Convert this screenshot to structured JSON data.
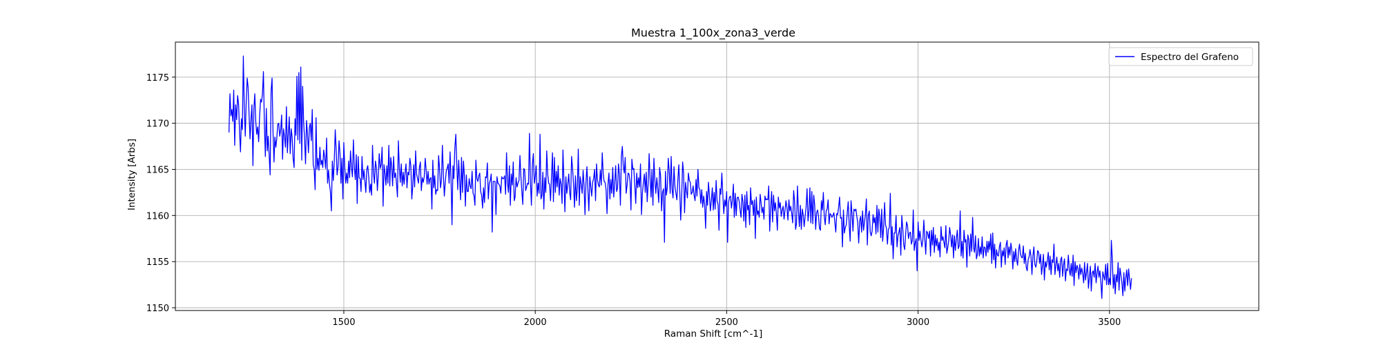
{
  "chart_data": {
    "type": "line",
    "title": "Muestra 1_100x_zona3_verde",
    "xlabel": "Raman Shift [cm^-1]",
    "ylabel": "Intensity [Arbs]",
    "xlim": [
      1060,
      3890
    ],
    "ylim": [
      1149.7,
      1178.8
    ],
    "xticks": [
      1500,
      2000,
      2500,
      3000,
      3500
    ],
    "yticks": [
      1150,
      1155,
      1160,
      1165,
      1170,
      1175
    ],
    "grid": true,
    "legend_position": "top-right",
    "series": [
      {
        "name": "Espectro del Grafeno",
        "color": "#0000ff",
        "x_start": 1200,
        "x_step": 2.5,
        "values": [
          1169.0,
          1173.2,
          1170.8,
          1171.5,
          1170.2,
          1173.6,
          1167.6,
          1172.0,
          1170.4,
          1173.0,
          1172.1,
          1169.1,
          1166.9,
          1170.5,
          1169.3,
          1177.3,
          1171.7,
          1168.6,
          1172.4,
          1174.9,
          1173.9,
          1171.0,
          1168.3,
          1170.4,
          1172.0,
          1165.4,
          1171.6,
          1173.2,
          1170.2,
          1168.8,
          1169.6,
          1168.0,
          1170.8,
          1172.6,
          1172.3,
          1173.2,
          1175.6,
          1169.8,
          1166.4,
          1171.6,
          1167.0,
          1168.6,
          1166.6,
          1164.4,
          1173.5,
          1174.9,
          1169.0,
          1165.8,
          1168.5,
          1167.4,
          1168.4,
          1169.9,
          1170.0,
          1168.6,
          1169.3,
          1170.9,
          1166.1,
          1169.4,
          1168.6,
          1167.4,
          1171.8,
          1166.8,
          1168.9,
          1170.7,
          1166.7,
          1169.4,
          1168.5,
          1166.2,
          1165.2,
          1170.5,
          1168.7,
          1175.1,
          1168.2,
          1175.5,
          1167.8,
          1176.1,
          1166.0,
          1174.0,
          1170.2,
          1168.3,
          1165.6,
          1170.3,
          1168.8,
          1166.8,
          1169.5,
          1170.0,
          1168.1,
          1171.5,
          1165.5,
          1165.0,
          1162.8,
          1170.6,
          1165.0,
          1166.2,
          1164.9,
          1167.4,
          1165.5,
          1166.0,
          1165.2,
          1167.1,
          1166.3,
          1165.1,
          1168.4,
          1163.5,
          1164.9,
          1163.4,
          1162.6,
          1160.5,
          1165.9,
          1163.8,
          1165.9,
          1169.3,
          1167.0,
          1164.4,
          1165.3,
          1168.1,
          1166.7,
          1163.5,
          1166.2,
          1161.8,
          1167.9,
          1165.2,
          1163.5,
          1164.6,
          1163.5,
          1165.9,
          1164.1,
          1167.0,
          1165.2,
          1164.2,
          1168.2,
          1165.2,
          1163.9,
          1166.6,
          1161.3,
          1166.4,
          1164.1,
          1164.0,
          1162.6,
          1166.4,
          1163.9,
          1164.9,
          1163.8,
          1162.5,
          1165.0,
          1165.4,
          1164.2,
          1162.5,
          1163.4,
          1162.2,
          1167.6,
          1164.6,
          1163.5,
          1165.9,
          1165.2,
          1162.7,
          1164.3,
          1166.7,
          1165.1,
          1165.5,
          1167.4,
          1161.0,
          1165.5,
          1164.6,
          1163.3,
          1165.4,
          1163.5,
          1167.6,
          1163.2,
          1166.3,
          1165.4,
          1163.2,
          1166.4,
          1164.1,
          1164.6,
          1163.5,
          1162.0,
          1168.1,
          1165.3,
          1163.6,
          1165.6,
          1163.2,
          1164.7,
          1163.4,
          1164.7,
          1165.6,
          1163.0,
          1164.7,
          1164.4,
          1166.2,
          1165.4,
          1161.8,
          1163.1,
          1165.5,
          1163.1,
          1167.0,
          1164.5,
          1164.0,
          1163.5,
          1165.2,
          1165.8,
          1162.7,
          1164.1,
          1163.6,
          1164.2,
          1166.2,
          1165.0,
          1163.4,
          1164.8,
          1163.4,
          1164.0,
          1164.1,
          1160.7,
          1166.0,
          1163.0,
          1164.3,
          1162.3,
          1162.8,
          1162.7,
          1166.5,
          1165.2,
          1163.0,
          1163.8,
          1167.6,
          1164.4,
          1162.1,
          1163.7,
          1164.8,
          1165.1,
          1165.6,
          1163.5,
          1166.9,
          1164.0,
          1159.0,
          1165.4,
          1164.0,
          1167.3,
          1168.8,
          1165.6,
          1162.8,
          1166.0,
          1163.8,
          1161.7,
          1166.3,
          1162.5,
          1165.9,
          1164.3,
          1161.0,
          1164.4,
          1162.6,
          1162.6,
          1164.0,
          1163.2,
          1162.9,
          1164.8,
          1162.4,
          1162.2,
          1161.1,
          1166.0,
          1164.0,
          1163.7,
          1164.3,
          1164.6,
          1162.6,
          1162.2,
          1160.8,
          1163.0,
          1161.4,
          1164.2,
          1164.1,
          1165.7,
          1161.8,
          1163.5,
          1163.8,
          1164.5,
          1158.2,
          1163.7,
          1163.7,
          1163.7,
          1160.1,
          1164.2,
          1163.5,
          1163.4,
          1163.2,
          1162.4,
          1164.2,
          1164.0,
          1164.0,
          1164.3,
          1162.3,
          1166.8,
          1163.6,
          1162.5,
          1165.4,
          1161.1,
          1164.5,
          1163.3,
          1165.8,
          1161.6,
          1162.0,
          1164.1,
          1163.1,
          1163.5,
          1163.8,
          1166.5,
          1164.2,
          1162.7,
          1161.2,
          1165.1,
          1164.9,
          1162.7,
          1163.1,
          1163.5,
          1163.4,
          1168.9,
          1163.6,
          1161.1,
          1165.5,
          1166.7,
          1163.5,
          1164.2,
          1165.4,
          1162.1,
          1163.5,
          1162.4,
          1168.8,
          1161.8,
          1162.2,
          1164.7,
          1160.7,
          1164.1,
          1162.5,
          1167.0,
          1164.5,
          1163.5,
          1163.4,
          1161.6,
          1164.2,
          1166.8,
          1161.5,
          1166.3,
          1162.5,
          1164.8,
          1163.1,
          1165.4,
          1162.2,
          1164.0,
          1163.4,
          1161.3,
          1167.1,
          1163.8,
          1160.4,
          1164.2,
          1162.4,
          1163.4,
          1164.5,
          1162.5,
          1161.7,
          1166.4,
          1165.1,
          1163.4,
          1160.9,
          1164.3,
          1161.6,
          1162.9,
          1167.2,
          1161.1,
          1164.2,
          1163.4,
          1162.4,
          1164.9,
          1163.3,
          1160.1,
          1163.6,
          1165.3,
          1162.8,
          1160.5,
          1164.2,
          1163.2,
          1162.1,
          1163.6,
          1164.0,
          1165.0,
          1161.6,
          1165.6,
          1163.9,
          1163.3,
          1163.1,
          1164.9,
          1163.3,
          1166.8,
          1164.5,
          1163.7,
          1163.6,
          1162.8,
          1160.2,
          1163.4,
          1164.6,
          1161.8,
          1163.9,
          1162.4,
          1165.2,
          1162.0,
          1163.4,
          1165.4,
          1162.6,
          1163.0,
          1165.6,
          1164.4,
          1161.1,
          1166.4,
          1167.5,
          1165.3,
          1164.6,
          1166.3,
          1162.4,
          1163.3,
          1164.6,
          1164.5,
          1163.7,
          1160.6,
          1166.1,
          1165.0,
          1165.1,
          1163.3,
          1161.3,
          1164.6,
          1163.0,
          1164.1,
          1163.1,
          1165.6,
          1160.1,
          1162.5,
          1163.6,
          1164.5,
          1162.5,
          1164.7,
          1161.5,
          1163.5,
          1166.7,
          1164.0,
          1162.0,
          1165.0,
          1161.1,
          1166.2,
          1163.8,
          1162.4,
          1164.1,
          1162.9,
          1161.4,
          1165.2,
          1164.3,
          1160.5,
          1162.5,
          1162.9,
          1157.1,
          1164.8,
          1162.2,
          1163.0,
          1166.2,
          1164.8,
          1162.4,
          1166.4,
          1162.8,
          1161.9,
          1165.3,
          1163.1,
          1162.4,
          1161.7,
          1163.9,
          1165.5,
          1162.7,
          1159.5,
          1162.0,
          1165.8,
          1164.6,
          1160.3,
          1163.6,
          1162.7,
          1161.9,
          1164.6,
          1163.8,
          1163.6,
          1162.3,
          1162.5,
          1163.2,
          1162.2,
          1161.6,
          1163.9,
          1162.1,
          1165.0,
          1163.0,
          1162.8,
          1161.3,
          1162.8,
          1160.9,
          1162.1,
          1161.2,
          1158.6,
          1162.6,
          1161.1,
          1163.6,
          1162.2,
          1160.5,
          1161.6,
          1163.0,
          1160.6,
          1162.5,
          1160.7,
          1163.8,
          1161.6,
          1161.2,
          1158.4,
          1162.9,
          1162.3,
          1164.6,
          1162.3,
          1160.2,
          1161.7,
          1161.0,
          1162.6,
          1157.1,
          1161.4,
          1162.0,
          1162.1,
          1160.8,
          1161.7,
          1163.4,
          1159.8,
          1162.4,
          1160.0,
          1161.9,
          1162.0,
          1161.6,
          1160.6,
          1159.8,
          1162.3,
          1161.5,
          1159.4,
          1162.2,
          1158.7,
          1162.6,
          1160.6,
          1161.1,
          1159.0,
          1163.0,
          1161.2,
          1161.6,
          1160.0,
          1161.7,
          1157.5,
          1162.0,
          1160.1,
          1160.5,
          1159.8,
          1162.3,
          1161.3,
          1160.3,
          1160.9,
          1159.6,
          1162.1,
          1161.7,
          1161.8,
          1161.7,
          1163.2,
          1158.3,
          1160.8,
          1162.6,
          1159.3,
          1162.2,
          1160.5,
          1161.4,
          1160.2,
          1158.4,
          1162.0,
          1160.8,
          1161.4,
          1159.9,
          1160.6,
          1161.0,
          1159.6,
          1160.6,
          1161.6,
          1160.8,
          1159.5,
          1161.7,
          1160.5,
          1161.0,
          1160.2,
          1159.2,
          1162.7,
          1161.5,
          1158.5,
          1159.1,
          1163.2,
          1160.5,
          1158.8,
          1161.1,
          1158.5,
          1160.7,
          1160.1,
          1158.8,
          1159.9,
          1160.9,
          1162.9,
          1159.4,
          1160.5,
          1163.0,
          1159.2,
          1162.6,
          1159.1,
          1162.2,
          1161.1,
          1158.5,
          1160.3,
          1160.6,
          1159.9,
          1158.6,
          1158.4,
          1161.6,
          1160.6,
          1162.5,
          1159.9,
          1159.0,
          1160.5,
          1160.7,
          1161.7,
          1159.1,
          1160.2,
          1160.1,
          1159.8,
          1160.0,
          1160.3,
          1159.3,
          1158.2,
          1160.2,
          1160.1,
          1160.9,
          1162.0,
          1159.7,
          1159.8,
          1156.6,
          1160.6,
          1158.1,
          1158.7,
          1159.0,
          1160.3,
          1161.5,
          1159.0,
          1157.2,
          1161.6,
          1160.2,
          1158.3,
          1160.7,
          1160.5,
          1160.7,
          1159.9,
          1159.2,
          1157.0,
          1159.4,
          1159.9,
          1158.2,
          1160.5,
          1158.4,
          1159.3,
          1160.1,
          1161.8,
          1156.8,
          1160.0,
          1160.5,
          1158.2,
          1157.8,
          1158.3,
          1160.1,
          1159.2,
          1159.8,
          1158.0,
          1161.1,
          1158.2,
          1160.7,
          1159.9,
          1157.6,
          1160.7,
          1157.2,
          1158.7,
          1161.4,
          1159.0,
          1158.6,
          1156.9,
          1158.5,
          1158.7,
          1162.4,
          1156.8,
          1158.8,
          1155.3,
          1158.1,
          1158.1,
          1160.0,
          1156.6,
          1157.8,
          1158.2,
          1158.7,
          1155.7,
          1160.0,
          1158.6,
          1156.8,
          1156.3,
          1158.0,
          1159.3,
          1158.9,
          1157.5,
          1158.1,
          1158.2,
          1156.9,
          1157.3,
          1160.6,
          1156.2,
          1157.0,
          1157.5,
          1154.0,
          1159.3,
          1157.3,
          1158.3,
          1157.4,
          1156.6,
          1157.3,
          1159.5,
          1157.5,
          1155.8,
          1158.3,
          1158.1,
          1157.5,
          1158.3,
          1155.6,
          1158.4,
          1156.8,
          1158.7,
          1156.0,
          1157.9,
          1156.7,
          1157.5,
          1156.2,
          1157.1,
          1155.5,
          1158.8,
          1157.3,
          1157.7,
          1157.1,
          1156.5,
          1158.9,
          1155.9,
          1156.5,
          1157.2,
          1158.7,
          1157.9,
          1156.6,
          1157.9,
          1155.4,
          1157.8,
          1156.2,
          1157.5,
          1158.4,
          1156.4,
          1156.7,
          1160.5,
          1155.6,
          1157.2,
          1155.4,
          1158.4,
          1157.1,
          1157.4,
          1154.4,
          1157.9,
          1157.4,
          1155.6,
          1158.0,
          1156.1,
          1159.8,
          1156.5,
          1156.0,
          1157.8,
          1155.3,
          1155.8,
          1157.5,
          1155.6,
          1156.6,
          1155.8,
          1157.7,
          1155.4,
          1156.6,
          1156.5,
          1155.6,
          1157.2,
          1156.0,
          1157.2,
          1156.3,
          1158.0,
          1154.8,
          1158.1,
          1155.2,
          1156.9,
          1154.3,
          1156.3,
          1155.7,
          1155.6,
          1156.6,
          1157.1,
          1154.4,
          1156.2,
          1155.6,
          1156.5,
          1154.7,
          1156.8,
          1157.3,
          1155.4,
          1156.6,
          1155.7,
          1157.0,
          1156.2,
          1154.2,
          1156.1,
          1155.0,
          1156.4,
          1155.2,
          1154.6,
          1156.2,
          1156.9,
          1155.8,
          1155.5,
          1155.4,
          1156.7,
          1154.8,
          1155.9,
          1154.4,
          1154.0,
          1155.2,
          1155.5,
          1156.3,
          1155.6,
          1153.6,
          1155.6,
          1156.6,
          1154.7,
          1154.4,
          1155.0,
          1156.2,
          1156.0,
          1154.8,
          1155.8,
          1153.6,
          1154.6,
          1155.8,
          1153.0,
          1155.0,
          1154.4,
          1155.1,
          1156.0,
          1154.1,
          1155.6,
          1153.6,
          1155.2,
          1154.9,
          1156.9,
          1153.6,
          1154.7,
          1155.5,
          1154.0,
          1154.8,
          1153.3,
          1155.2,
          1155.5,
          1153.4,
          1154.6,
          1155.3,
          1152.9,
          1154.2,
          1154.0,
          1155.7,
          1154.1,
          1153.5,
          1154.8,
          1153.4,
          1155.7,
          1152.4,
          1155.0,
          1153.8,
          1154.6,
          1154.3,
          1153.1,
          1154.7,
          1153.6,
          1154.3,
          1153.7,
          1152.7,
          1154.9,
          1153.0,
          1153.8,
          1154.8,
          1152.1,
          1153.3,
          1154.5,
          1151.8,
          1153.8,
          1154.0,
          1153.3,
          1154.8,
          1152.7,
          1153.8,
          1154.5,
          1153.3,
          1154.0,
          1152.8,
          1151.0,
          1153.9,
          1153.4,
          1153.0,
          1154.7,
          1152.5,
          1154.8,
          1152.5,
          1153.2,
          1152.5,
          1157.3,
          1155.2,
          1152.1,
          1153.6,
          1151.5,
          1153.6,
          1152.8,
          1154.9,
          1151.9,
          1154.3,
          1153.5,
          1152.7,
          1151.3,
          1153.8,
          1151.8,
          1153.2,
          1154.1,
          1152.4,
          1154.2,
          1153.1,
          1152.0,
          1153.2
        ]
      }
    ]
  }
}
